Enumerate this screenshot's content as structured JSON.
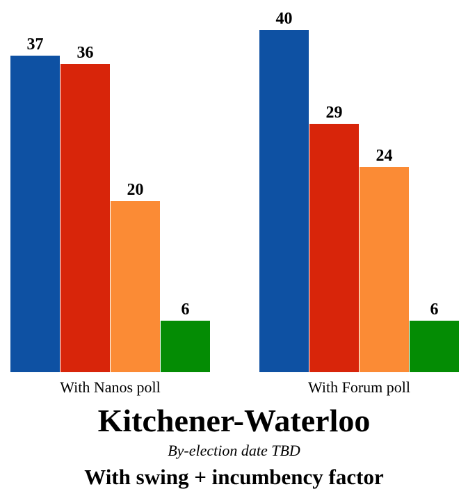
{
  "chart_data": {
    "type": "bar",
    "title": "Kitchener-Waterloo",
    "subtitle": "By-election date TBD",
    "note": "With swing + incumbency factor",
    "categories": [
      "With Nanos poll",
      "With Forum poll"
    ],
    "groups": [
      {
        "label": "With Nanos poll",
        "values": [
          37,
          36,
          20,
          6
        ]
      },
      {
        "label": "With Forum poll",
        "values": [
          40,
          29,
          24,
          6
        ]
      }
    ],
    "series": [
      {
        "name": "blue",
        "color": "#0E51A3"
      },
      {
        "name": "red",
        "color": "#D8250A"
      },
      {
        "name": "orange",
        "color": "#FB8B35"
      },
      {
        "name": "green",
        "color": "#048C04"
      }
    ],
    "ylim": [
      0,
      43
    ],
    "grid": false,
    "axes_visible": false,
    "legend": false,
    "bar_value_labels": true
  }
}
